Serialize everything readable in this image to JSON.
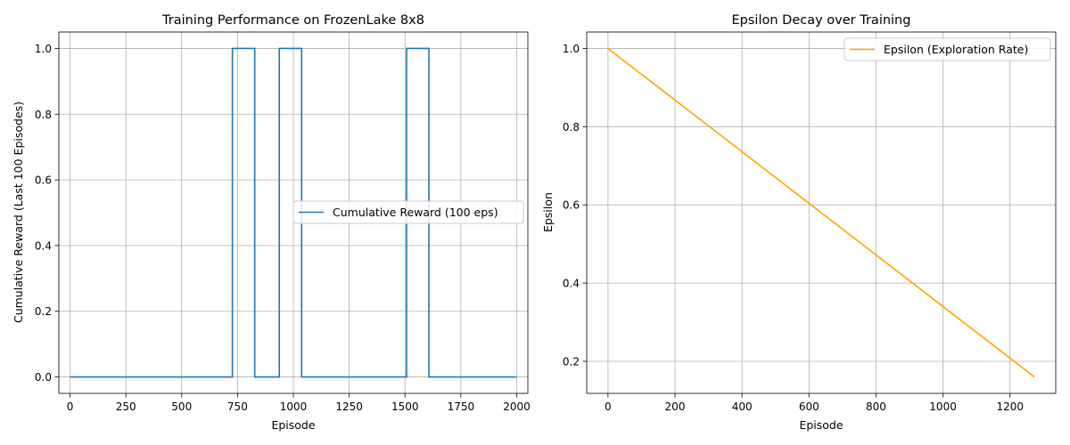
{
  "chart_data": [
    {
      "type": "line",
      "title": "Training Performance on FrozenLake 8x8",
      "xlabel": "Episode",
      "ylabel": "Cumulative Reward (Last 100 Episodes)",
      "xlim": [
        -50,
        2050
      ],
      "ylim": [
        -0.05,
        1.05
      ],
      "xticks": [
        0,
        250,
        500,
        750,
        1000,
        1250,
        1500,
        1750,
        2000
      ],
      "yticks": [
        0.0,
        0.2,
        0.4,
        0.6,
        0.8,
        1.0
      ],
      "ytick_decimals": 1,
      "grid": true,
      "legend": {
        "position": "center-right"
      },
      "series": [
        {
          "name": "Cumulative Reward (100 eps)",
          "color": "#1f77b4",
          "x": [
            0,
            727,
            727,
            827,
            827,
            937,
            937,
            1037,
            1037,
            1507,
            1507,
            1607,
            1607,
            1999
          ],
          "y": [
            0,
            0,
            1,
            1,
            0,
            0,
            1,
            1,
            0,
            0,
            1,
            1,
            0,
            0
          ]
        }
      ]
    },
    {
      "type": "line",
      "title": "Epsilon Decay over Training",
      "xlabel": "Episode",
      "ylabel": "Epsilon",
      "xlim": [
        -63.5,
        1336.5
      ],
      "ylim": [
        0.118,
        1.042
      ],
      "xticks": [
        0,
        200,
        400,
        600,
        800,
        1000,
        1200
      ],
      "yticks": [
        0.2,
        0.4,
        0.6,
        0.8,
        1.0
      ],
      "ytick_decimals": 1,
      "grid": true,
      "legend": {
        "position": "upper-right"
      },
      "series": [
        {
          "name": "Epsilon (Exploration Rate)",
          "color": "#ffa500",
          "x": [
            0,
            1273
          ],
          "y": [
            1.0,
            0.16
          ]
        }
      ]
    }
  ]
}
